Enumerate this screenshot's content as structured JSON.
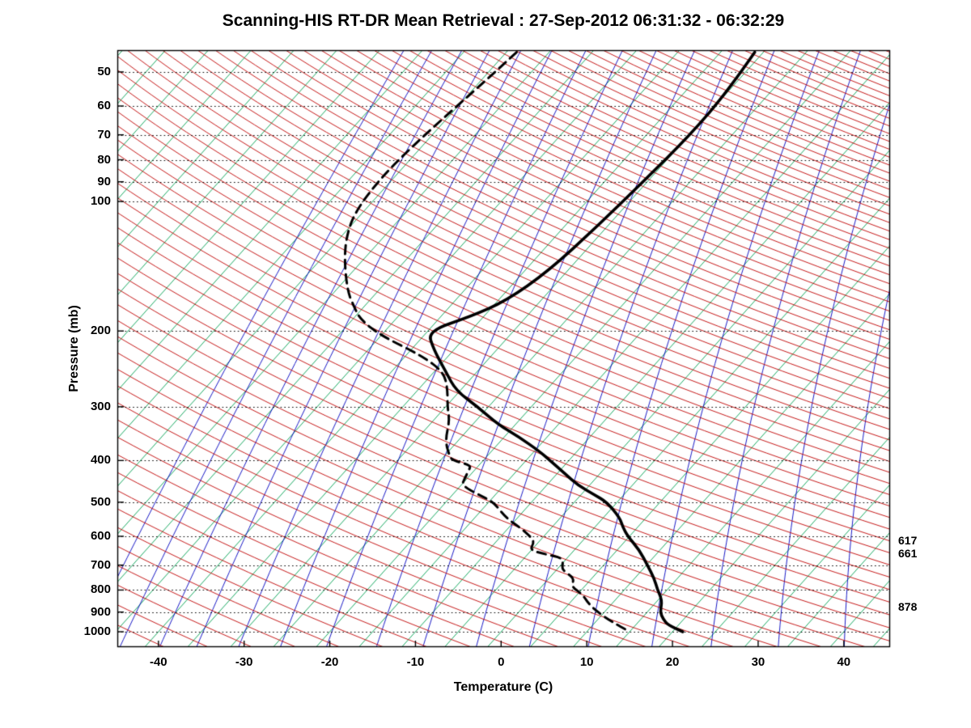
{
  "title": "Scanning-HIS RT-DR Mean Retrieval : 27-Sep-2012 06:31:32 - 06:32:29",
  "chart_data": {
    "type": "line",
    "variant": "skew-t-log-p-sounding",
    "xlabel": "Temperature (C)",
    "ylabel": "Pressure (mb)",
    "x_ticks": [
      -40,
      -30,
      -20,
      -10,
      0,
      10,
      20,
      30,
      40
    ],
    "y_ticks": [
      50,
      60,
      70,
      80,
      90,
      100,
      200,
      300,
      400,
      500,
      600,
      700,
      800,
      900,
      1000
    ],
    "pressure_gridlines": [
      50,
      60,
      70,
      80,
      90,
      100,
      200,
      300,
      400,
      500,
      600,
      700,
      800,
      900,
      1000
    ],
    "p_top": 44.5,
    "p_bottom": 1085.7,
    "t_left": -44.8,
    "t_right": 45.4,
    "skew_per_decade": 45,
    "isotherms": {
      "start": -115,
      "end": 45,
      "step": 5
    },
    "dry_adiabats_K": {
      "start": 230,
      "end": 630,
      "step": 5
    },
    "mixing_ratio_g_kg": [
      0.05,
      0.08,
      0.13,
      0.2,
      0.32,
      0.5,
      0.8,
      1.3,
      2,
      3.2,
      5,
      8,
      13,
      20,
      32,
      50,
      80
    ],
    "colors": {
      "isotherm": "#00a050",
      "dry_adiabat": "#c00000",
      "mixing_ratio": "#0000c0",
      "gridline": "#000000",
      "temperature": "#000000",
      "dewpoint": "#000000",
      "background": "#ffffff"
    },
    "temperature_profile_pT": [
      [
        45,
        -31.0
      ],
      [
        55,
        -30.1
      ],
      [
        70,
        -29.9
      ],
      [
        90,
        -30.5
      ],
      [
        115,
        -31.2
      ],
      [
        145,
        -32.2
      ],
      [
        170,
        -34.0
      ],
      [
        185,
        -36.5
      ],
      [
        200,
        -40.0
      ],
      [
        220,
        -37.5
      ],
      [
        250,
        -33.5
      ],
      [
        275,
        -30.5
      ],
      [
        300,
        -26.3
      ],
      [
        330,
        -22.0
      ],
      [
        352,
        -18.4
      ],
      [
        380,
        -14.5
      ],
      [
        400,
        -12.2
      ],
      [
        430,
        -9.0
      ],
      [
        457,
        -6.3
      ],
      [
        480,
        -3.5
      ],
      [
        500,
        -1.2
      ],
      [
        543,
        1.9
      ],
      [
        570,
        3.2
      ],
      [
        600,
        4.8
      ],
      [
        646,
        7.6
      ],
      [
        700,
        10.1
      ],
      [
        752,
        12.3
      ],
      [
        800,
        13.9
      ],
      [
        830,
        15.0
      ],
      [
        860,
        15.8
      ],
      [
        900,
        16.5
      ],
      [
        935,
        17.6
      ],
      [
        965,
        18.8
      ],
      [
        1000,
        21.2
      ]
    ],
    "dewpoint_profile_pT": [
      [
        45,
        -58.8
      ],
      [
        52,
        -59.4
      ],
      [
        62,
        -60.3
      ],
      [
        74,
        -61.1
      ],
      [
        88,
        -61.5
      ],
      [
        105,
        -61.0
      ],
      [
        119,
        -59.6
      ],
      [
        136,
        -57.3
      ],
      [
        162,
        -53.5
      ],
      [
        176,
        -51.1
      ],
      [
        188,
        -49.1
      ],
      [
        205,
        -45.0
      ],
      [
        228,
        -38.2
      ],
      [
        249,
        -33.9
      ],
      [
        272,
        -31.7
      ],
      [
        300,
        -29.8
      ],
      [
        323,
        -28.1
      ],
      [
        360,
        -26.5
      ],
      [
        392,
        -24.3
      ],
      [
        400,
        -23.5
      ],
      [
        410,
        -21.0
      ],
      [
        419,
        -20.7
      ],
      [
        440,
        -20.3
      ],
      [
        457,
        -19.9
      ],
      [
        480,
        -17.0
      ],
      [
        500,
        -14.4
      ],
      [
        543,
        -11.4
      ],
      [
        575,
        -8.5
      ],
      [
        600,
        -6.6
      ],
      [
        619,
        -5.5
      ],
      [
        646,
        -5.2
      ],
      [
        660,
        -3.0
      ],
      [
        674,
        -0.5
      ],
      [
        700,
        0.2
      ],
      [
        719,
        0.7
      ],
      [
        752,
        3.0
      ],
      [
        784,
        3.4
      ],
      [
        819,
        5.6
      ],
      [
        866,
        7.5
      ],
      [
        905,
        9.5
      ],
      [
        945,
        11.7
      ],
      [
        1000,
        15.0
      ]
    ],
    "side_labels": [
      {
        "p": 617,
        "text": "617"
      },
      {
        "p": 661,
        "text": "661"
      },
      {
        "p": 878,
        "text": "878"
      }
    ]
  }
}
